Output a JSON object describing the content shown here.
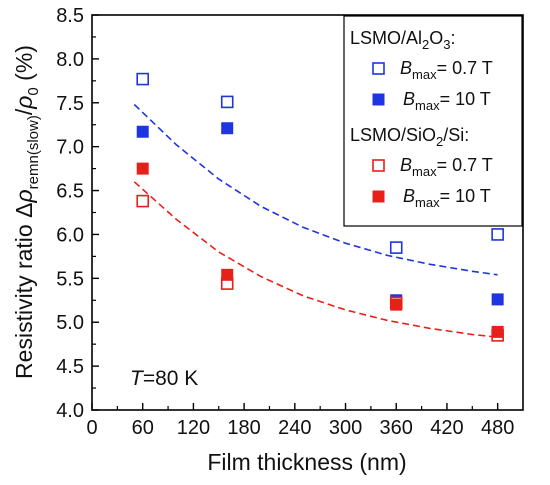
{
  "chart_data": {
    "type": "scatter",
    "xlabel": "Film thickness (nm)",
    "ylabel": "Resistivity ratio Δρremn(slow)/ρ0 (%)",
    "ylabel_parts": {
      "prefix": "Resistivity ratio Δ",
      "rho": "ρ",
      "sub": "remn(slow)",
      "slash": "/",
      "rho0": "ρ",
      "sub0": "0",
      "unit": " (%)"
    },
    "xlim": [
      0,
      510
    ],
    "ylim": [
      4.0,
      8.5
    ],
    "xticks": [
      "0",
      "60",
      "120",
      "180",
      "240",
      "300",
      "360",
      "420",
      "480"
    ],
    "xtick_values": [
      0,
      60,
      120,
      180,
      240,
      300,
      360,
      420,
      480
    ],
    "yticks": [
      "4.0",
      "4.5",
      "5.0",
      "5.5",
      "6.0",
      "6.5",
      "7.0",
      "7.5",
      "8.0",
      "8.5"
    ],
    "ytick_values": [
      4.0,
      4.5,
      5.0,
      5.5,
      6.0,
      6.5,
      7.0,
      7.5,
      8.0,
      8.5
    ],
    "annotation": {
      "var": "T",
      "text": "=80 K"
    },
    "legend": {
      "placement": "top-right",
      "groups": [
        {
          "title_main": "LSMO/Al",
          "title_sub1": "2",
          "title_mid": "O",
          "title_sub2": "3",
          "title_end": ":"
        },
        {
          "title_main": "LSMO/SiO",
          "title_sub1": "2",
          "title_mid": "/Si",
          "title_sub2": "",
          "title_end": ":"
        }
      ]
    },
    "series": [
      {
        "group": 0,
        "B": "B",
        "sub": "max",
        "label": "= 0.7 T",
        "color": "#1f35e0",
        "filled": false,
        "x": [
          60,
          160,
          360,
          480
        ],
        "y": [
          7.77,
          7.51,
          5.85,
          6.0
        ]
      },
      {
        "group": 0,
        "B": "B",
        "sub": "max",
        "label": "= 10 T",
        "color": "#1f35e0",
        "filled": true,
        "x": [
          60,
          160,
          360,
          480
        ],
        "y": [
          7.17,
          7.21,
          5.25,
          5.26
        ]
      },
      {
        "group": 1,
        "B": "B",
        "sub": "max",
        "label": "= 0.7 T",
        "color": "#e8201c",
        "filled": false,
        "x": [
          60,
          160,
          360,
          480
        ],
        "y": [
          6.38,
          5.44,
          5.22,
          4.85
        ]
      },
      {
        "group": 1,
        "B": "B",
        "sub": "max",
        "label": "= 10 T",
        "color": "#e8201c",
        "filled": true,
        "x": [
          60,
          160,
          360,
          480
        ],
        "y": [
          6.75,
          5.54,
          5.2,
          4.89
        ]
      }
    ],
    "fits": [
      {
        "color": "#1f35e0",
        "x": [
          50,
          100,
          150,
          200,
          250,
          300,
          350,
          400,
          450,
          480
        ],
        "y": [
          7.48,
          7.02,
          6.63,
          6.32,
          6.08,
          5.9,
          5.76,
          5.66,
          5.58,
          5.54
        ]
      },
      {
        "color": "#e8201c",
        "x": [
          50,
          100,
          150,
          200,
          250,
          300,
          350,
          400,
          450,
          480
        ],
        "y": [
          6.6,
          6.17,
          5.8,
          5.52,
          5.3,
          5.14,
          5.02,
          4.93,
          4.86,
          4.83
        ]
      }
    ]
  }
}
